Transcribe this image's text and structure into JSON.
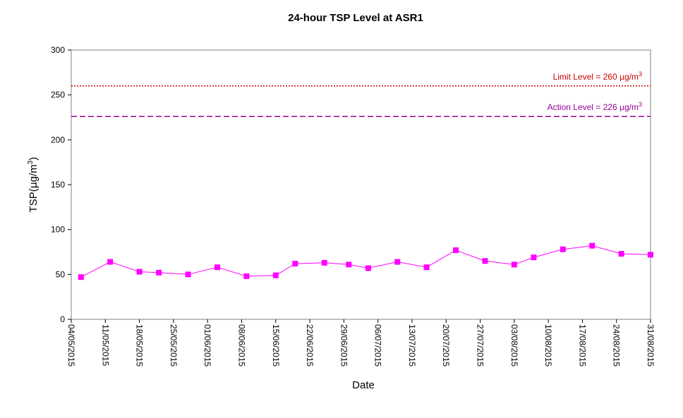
{
  "chart_data": {
    "type": "line",
    "title": "24-hour TSP Level at ASR1",
    "xlabel": "Date",
    "ylabel": "TSP(μg/m3)",
    "ylabel_parts": {
      "pre": "TSP(",
      "mu": "μ",
      "unit": "g/m",
      "sup": "3",
      "post": ")"
    },
    "ylim": [
      0,
      300
    ],
    "yticks": [
      0,
      50,
      100,
      150,
      200,
      250,
      300
    ],
    "xlim": [
      "2015-05-04",
      "2015-08-31"
    ],
    "xticks": [
      "04/05/2015",
      "11/05/2015",
      "18/05/2015",
      "25/05/2015",
      "01/06/2015",
      "08/06/2015",
      "15/06/2015",
      "22/06/2015",
      "29/06/2015",
      "06/07/2015",
      "13/07/2015",
      "20/07/2015",
      "27/07/2015",
      "03/08/2015",
      "10/08/2015",
      "17/08/2015",
      "24/08/2015",
      "31/08/2015"
    ],
    "grid": false,
    "series": [
      {
        "color": "#ff00ff",
        "x": [
          "2015-05-06",
          "2015-05-12",
          "2015-05-18",
          "2015-05-22",
          "2015-05-28",
          "2015-06-03",
          "2015-06-09",
          "2015-06-15",
          "2015-06-19",
          "2015-06-25",
          "2015-06-30",
          "2015-07-04",
          "2015-07-10",
          "2015-07-16",
          "2015-07-22",
          "2015-07-28",
          "2015-08-03",
          "2015-08-07",
          "2015-08-13",
          "2015-08-19",
          "2015-08-25",
          "2015-08-31"
        ],
        "y": [
          47,
          64,
          53,
          52,
          50,
          58,
          48,
          49,
          62,
          63,
          61,
          57,
          64,
          58,
          77,
          65,
          61,
          69,
          78,
          82,
          73,
          72
        ]
      }
    ],
    "reference_lines": [
      {
        "name": "Limit Level = 260 μg/m3",
        "text_pre": "Limit Level  = 260 ",
        "mu": "μ",
        "unit": "g/m",
        "sup": "3",
        "value": 260,
        "color": "#cc0000",
        "style": "dotted"
      },
      {
        "name": "Action Level = 226 μg/m3",
        "text_pre": "Action Level  = 226 ",
        "mu": "μ",
        "unit": "g/m",
        "sup": "3",
        "value": 226,
        "color": "#990099",
        "style": "dashed"
      }
    ]
  }
}
